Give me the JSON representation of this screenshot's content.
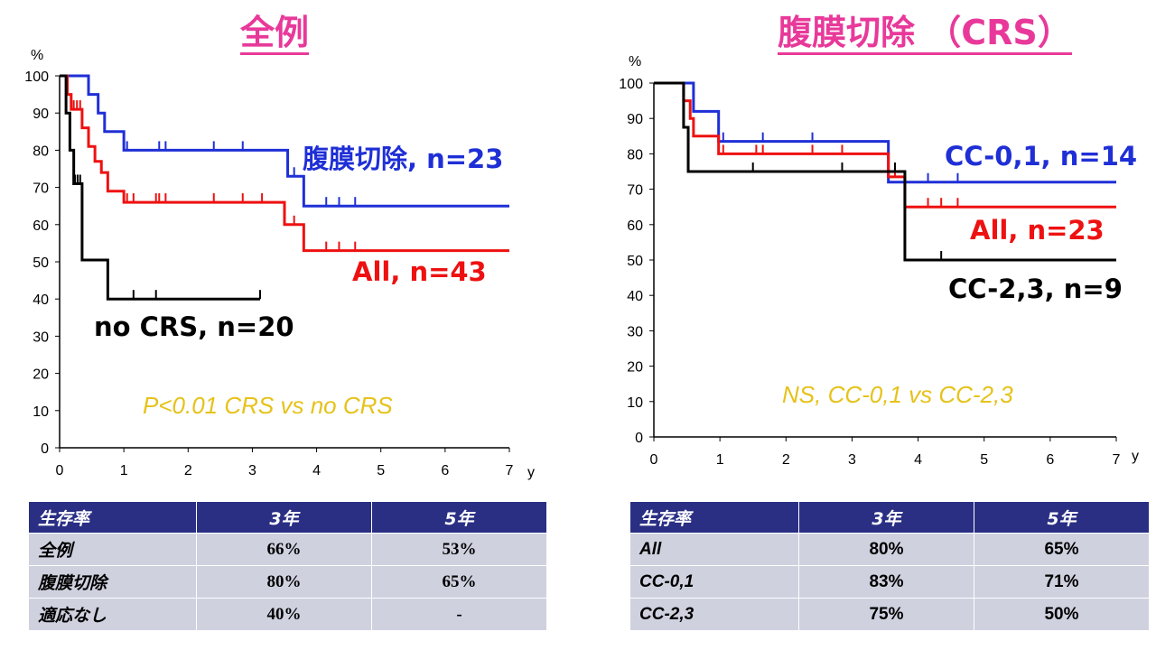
{
  "left": {
    "title": "全例",
    "ylabel": "%",
    "xlabel": "y",
    "y_ticks": [
      "0",
      "10",
      "20",
      "30",
      "40",
      "50",
      "60",
      "70",
      "80",
      "90",
      "100"
    ],
    "x_ticks": [
      "0",
      "1",
      "2",
      "3",
      "4",
      "5",
      "6",
      "7"
    ],
    "note": "P<0.01  CRS vs no CRS",
    "table": {
      "header": [
        "生存率",
        "3年",
        "5年"
      ],
      "rows": [
        [
          "全例",
          "66%",
          "53%"
        ],
        [
          "腹膜切除",
          "80%",
          "65%"
        ],
        [
          "適応なし",
          "40%",
          "-"
        ]
      ]
    }
  },
  "right": {
    "title": "腹膜切除 （CRS）",
    "ylabel": "%",
    "xlabel": "y",
    "y_ticks": [
      "0",
      "10",
      "20",
      "30",
      "40",
      "50",
      "60",
      "70",
      "80",
      "90",
      "100"
    ],
    "x_ticks": [
      "0",
      "1",
      "2",
      "3",
      "4",
      "5",
      "6",
      "7"
    ],
    "note": "NS, CC-0,1 vs CC-2,3",
    "table": {
      "header": [
        "生存率",
        "3年",
        "5年"
      ],
      "rows": [
        [
          "All",
          "80%",
          "65%"
        ],
        [
          "CC-0,1",
          "83%",
          "71%"
        ],
        [
          "CC-2,3",
          "75%",
          "50%"
        ]
      ]
    }
  },
  "colors": {
    "blue": "#1f2fd6",
    "red": "#ee1111",
    "black": "#000000",
    "note": "#e6c21a",
    "title": "#e8399a",
    "table_header": "#2a2f84",
    "table_cell": "#cfd1df"
  },
  "chart_data": [
    {
      "type": "line",
      "subtype": "kaplan-meier",
      "title": "全例",
      "xlabel": "y",
      "ylabel": "%",
      "xlim": [
        0,
        7
      ],
      "ylim": [
        0,
        100
      ],
      "series": [
        {
          "name": "腹膜切除, n=23",
          "color": "#1f2fd6",
          "steps": [
            [
              0,
              100
            ],
            [
              0.45,
              95
            ],
            [
              0.6,
              90
            ],
            [
              0.7,
              85
            ],
            [
              1.0,
              80
            ],
            [
              3.55,
              73
            ],
            [
              3.8,
              65
            ],
            [
              7,
              65
            ]
          ],
          "censor": [
            1.05,
            1.55,
            1.65,
            2.4,
            2.85,
            3.65,
            4.15,
            4.35,
            4.6
          ]
        },
        {
          "name": "All, n=43",
          "color": "#ee1111",
          "steps": [
            [
              0,
              100
            ],
            [
              0.12,
              95
            ],
            [
              0.18,
              91
            ],
            [
              0.35,
              86
            ],
            [
              0.45,
              81
            ],
            [
              0.55,
              77
            ],
            [
              0.65,
              74
            ],
            [
              0.75,
              69
            ],
            [
              1.0,
              66
            ],
            [
              3.5,
              60
            ],
            [
              3.8,
              53
            ],
            [
              7,
              53
            ]
          ],
          "censor": [
            0.22,
            0.27,
            0.32,
            1.05,
            1.15,
            1.5,
            1.55,
            1.65,
            2.4,
            2.85,
            3.15,
            3.65,
            4.15,
            4.35,
            4.6
          ]
        },
        {
          "name": "no CRS, n=20",
          "color": "#000000",
          "steps": [
            [
              0,
              100
            ],
            [
              0.1,
              90
            ],
            [
              0.16,
              80
            ],
            [
              0.22,
              71
            ],
            [
              0.35,
              50.5
            ],
            [
              0.75,
              40
            ],
            [
              3.12,
              40
            ]
          ],
          "censor": [
            0.24,
            0.28,
            0.32,
            1.15,
            1.5,
            3.12
          ]
        }
      ]
    },
    {
      "type": "line",
      "subtype": "kaplan-meier",
      "title": "腹膜切除 （CRS）",
      "xlabel": "y",
      "ylabel": "%",
      "xlim": [
        0,
        7
      ],
      "ylim": [
        0,
        100
      ],
      "series": [
        {
          "name": "CC-0,1, n=14",
          "color": "#1f2fd6",
          "steps": [
            [
              0,
              100
            ],
            [
              0.6,
              92
            ],
            [
              0.98,
              83.5
            ],
            [
              3.55,
              72
            ],
            [
              7,
              72
            ]
          ],
          "censor": [
            1.05,
            1.65,
            2.4,
            4.15,
            4.6
          ]
        },
        {
          "name": "All, n=23",
          "color": "#ee1111",
          "steps": [
            [
              0,
              100
            ],
            [
              0.45,
              95
            ],
            [
              0.55,
              90
            ],
            [
              0.6,
              85
            ],
            [
              0.98,
              80
            ],
            [
              3.55,
              73.5
            ],
            [
              3.8,
              65
            ],
            [
              7,
              65
            ]
          ],
          "censor": [
            1.05,
            1.55,
            1.65,
            2.4,
            2.85,
            3.65,
            4.15,
            4.35,
            4.6
          ]
        },
        {
          "name": "CC-2,3, n=9",
          "color": "#000000",
          "steps": [
            [
              0,
              100
            ],
            [
              0.45,
              87.5
            ],
            [
              0.52,
              75
            ],
            [
              3.8,
              50
            ],
            [
              7,
              50
            ]
          ],
          "censor": [
            1.5,
            2.85,
            3.65,
            4.35
          ]
        }
      ]
    }
  ]
}
